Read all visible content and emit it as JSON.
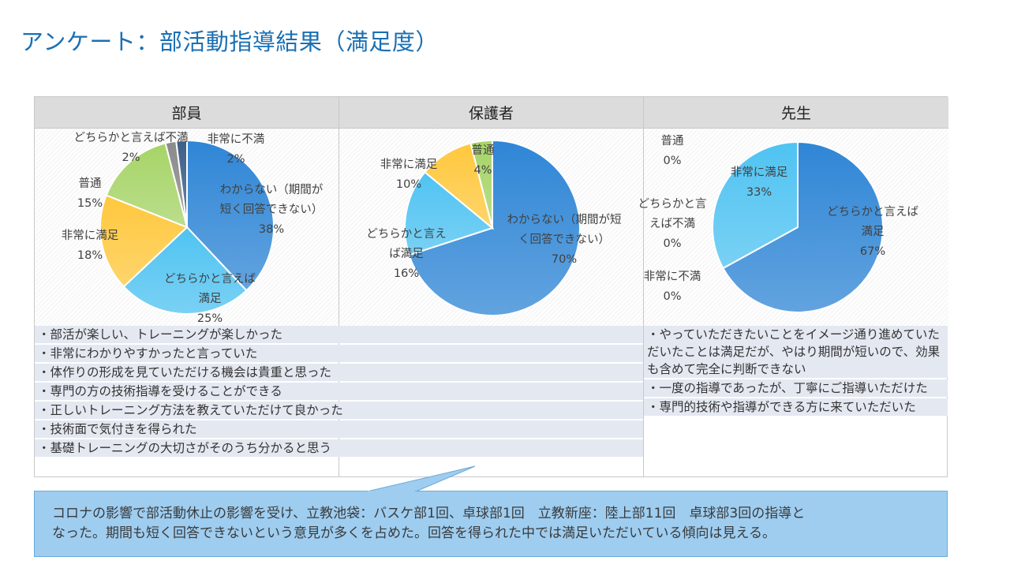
{
  "title": "アンケート：部活動指導結果（満足度）",
  "columns": [
    {
      "header": "部員"
    },
    {
      "header": "保護者"
    },
    {
      "header": "先生"
    }
  ],
  "chart_data": [
    {
      "type": "pie",
      "title": "部員",
      "slices": [
        {
          "label": [
            "わからない（期間が",
            "短く回答できない）"
          ],
          "value": 38,
          "pct": "38%",
          "color": "#2f86d6"
        },
        {
          "label": [
            "どちらかと言えば",
            "満足"
          ],
          "value": 25,
          "pct": "25%",
          "color": "#4fc3f2"
        },
        {
          "label": [
            "非常に満足"
          ],
          "value": 18,
          "pct": "18%",
          "color": "#ffc83d"
        },
        {
          "label": [
            "普通"
          ],
          "value": 15,
          "pct": "15%",
          "color": "#a6d467"
        },
        {
          "label": [
            "どちらかと言えば不満"
          ],
          "value": 2,
          "pct": "2%",
          "color": "#8a8a8a"
        },
        {
          "label": [
            "非常に不満"
          ],
          "value": 2,
          "pct": "2%",
          "color": "#3c5f86"
        }
      ]
    },
    {
      "type": "pie",
      "title": "保護者",
      "slices": [
        {
          "label": [
            "わからない（期間が短",
            "く回答できない）"
          ],
          "value": 70,
          "pct": "70%",
          "color": "#2f86d6"
        },
        {
          "label": [
            "どちらかと言え",
            "ば満足"
          ],
          "value": 16,
          "pct": "16%",
          "color": "#4fc3f2"
        },
        {
          "label": [
            "非常に満足"
          ],
          "value": 10,
          "pct": "10%",
          "color": "#ffc83d"
        },
        {
          "label": [
            "普通"
          ],
          "value": 4,
          "pct": "4%",
          "color": "#a6d467"
        }
      ]
    },
    {
      "type": "pie",
      "title": "先生",
      "slices": [
        {
          "label": [
            "どちらかと言えば",
            "満足"
          ],
          "value": 67,
          "pct": "67%",
          "color": "#2f86d6"
        },
        {
          "label": [
            "非常に満足"
          ],
          "value": 33,
          "pct": "33%",
          "color": "#4fc3f2"
        },
        {
          "label": [
            "非常に不満"
          ],
          "value": 0,
          "pct": "0%",
          "color": "#3c5f86"
        },
        {
          "label": [
            "どちらかと言",
            "えば不満"
          ],
          "value": 0,
          "pct": "0%",
          "color": "#8a8a8a"
        },
        {
          "label": [
            "普通"
          ],
          "value": 0,
          "pct": "0%",
          "color": "#a6d467"
        }
      ]
    }
  ],
  "comments_left": [
    "・部活が楽しい、トレーニングが楽しかった",
    "・非常にわかりやすかったと言っていた",
    "・体作りの形成を見ていただける機会は貴重と思った",
    "・専門の方の技術指導を受けることができる",
    "・正しいトレーニング方法を教えていただけて良かった",
    "・技術面で気付きを得られた",
    "・基礎トレーニングの大切さがそのうち分かると思う"
  ],
  "comments_right": [
    "・やっていただきたいことをイメージ通り進めていただいたことは満足だが、やはり期間が短いので、効果も含めて完全に判断できない",
    "・一度の指導であったが、丁寧にご指導いただけた",
    "・専門的技術や指導ができる方に来ていただいた"
  ],
  "summary": [
    "コロナの影響で部活動休止の影響を受け、立教池袋：バスケ部1回、卓球部1回　立教新座：陸上部11回　卓球部3回の指導と",
    "なった。期間も短く回答できないという意見が多くを占めた。回答を得られた中では満足いただいている傾向は見える。"
  ]
}
